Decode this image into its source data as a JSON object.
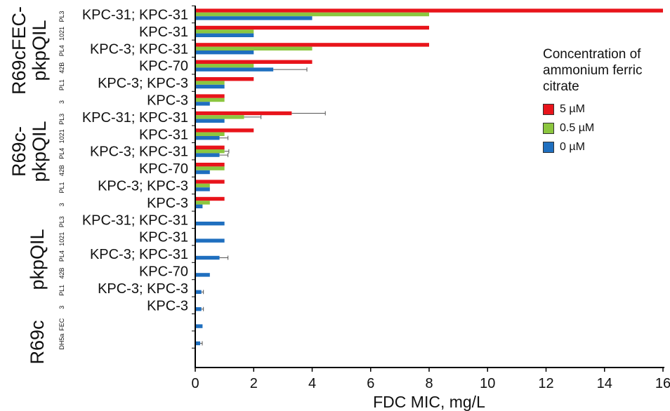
{
  "chart_data": {
    "type": "bar",
    "orientation": "horizontal",
    "xlabel": "FDC MIC, mg/L",
    "xlim": [
      0,
      16
    ],
    "xticks": [
      0,
      2,
      4,
      6,
      8,
      10,
      12,
      14,
      16
    ],
    "legend": {
      "title": "Concentration of ammonium ferric citrate",
      "placement": "right",
      "entries": [
        {
          "label": "5 µM",
          "color": "#e8141b"
        },
        {
          "label": "0.5 µM",
          "color": "#8cc63f"
        },
        {
          "label": "0 µM",
          "color": "#1f6fbf"
        }
      ]
    },
    "groups": [
      {
        "name": "R69cFEC-pkpQIL",
        "rows": [
          0,
          5
        ]
      },
      {
        "name": "R69c-pkpQIL",
        "rows": [
          6,
          11
        ]
      },
      {
        "name": "pkpQIL",
        "rows": [
          12,
          17
        ]
      },
      {
        "name": "R69c",
        "rows": [
          18,
          19
        ]
      }
    ],
    "rows": [
      {
        "label": "KPC-31; KPC-31",
        "strain": "PL3"
      },
      {
        "label": "KPC-31",
        "strain": "1021"
      },
      {
        "label": "KPC-3; KPC-31",
        "strain": "PL4"
      },
      {
        "label": "KPC-70",
        "strain": "42B"
      },
      {
        "label": "KPC-3; KPC-3",
        "strain": "PL1"
      },
      {
        "label": "KPC-3",
        "strain": "3"
      },
      {
        "label": "KPC-31; KPC-31",
        "strain": "PL3"
      },
      {
        "label": "KPC-31",
        "strain": "1021"
      },
      {
        "label": "KPC-3; KPC-31",
        "strain": "PL4"
      },
      {
        "label": "KPC-70",
        "strain": "42B"
      },
      {
        "label": "KPC-3; KPC-3",
        "strain": "PL1"
      },
      {
        "label": "KPC-3",
        "strain": "3"
      },
      {
        "label": "KPC-31; KPC-31",
        "strain": "PL3"
      },
      {
        "label": "KPC-31",
        "strain": "1021"
      },
      {
        "label": "KPC-3; KPC-31",
        "strain": "PL4"
      },
      {
        "label": "KPC-70",
        "strain": "42B"
      },
      {
        "label": "KPC-3; KPC-3",
        "strain": "PL1"
      },
      {
        "label": "KPC-3",
        "strain": "3"
      },
      {
        "label": "",
        "strain": "FEC"
      },
      {
        "label": "",
        "strain": "DH5a"
      }
    ],
    "series": [
      {
        "name": "5 µM",
        "color": "#e8141b",
        "values": [
          16,
          8,
          8,
          4,
          2,
          1,
          3.3,
          2,
          1,
          1,
          1,
          1,
          null,
          null,
          null,
          null,
          null,
          null,
          null,
          null
        ],
        "errors": [
          0,
          0,
          0,
          0,
          0,
          0,
          1.15,
          0,
          0,
          0,
          0,
          0,
          null,
          null,
          null,
          null,
          null,
          null,
          null,
          null
        ]
      },
      {
        "name": "0.5 µM",
        "color": "#8cc63f",
        "values": [
          8,
          2,
          4,
          2,
          1,
          1,
          1.67,
          1,
          1,
          1,
          0.5,
          0.5,
          null,
          null,
          null,
          null,
          null,
          null,
          null,
          null
        ],
        "errors": [
          0,
          0,
          0,
          0,
          0,
          0,
          0.58,
          0,
          0.15,
          0,
          0,
          0,
          null,
          null,
          null,
          null,
          null,
          null,
          null,
          null
        ]
      },
      {
        "name": "0 µM",
        "color": "#1f6fbf",
        "values": [
          4,
          2,
          2,
          2.67,
          1,
          0.5,
          1,
          0.83,
          0.83,
          0.5,
          0.5,
          0.25,
          1,
          1,
          0.83,
          0.5,
          0.21,
          0.21,
          0.25,
          0.17
        ],
        "errors": [
          0,
          0,
          0,
          1.15,
          0,
          0,
          0,
          0.29,
          0.29,
          0,
          0,
          0,
          0,
          0,
          0.29,
          0,
          0.07,
          0.07,
          0,
          0.07
        ]
      }
    ]
  }
}
